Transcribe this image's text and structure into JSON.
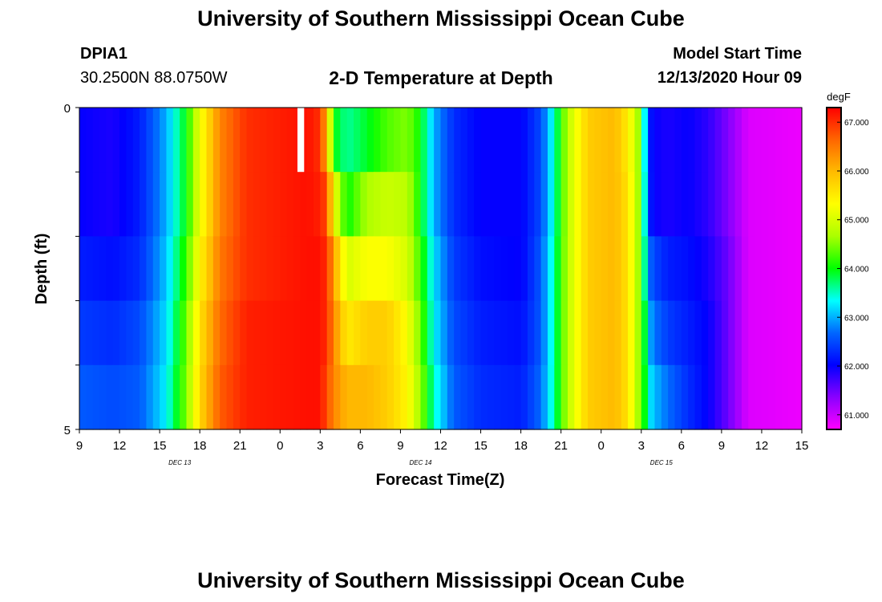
{
  "header": {
    "title": "University of Southern Mississippi Ocean Cube",
    "station_id": "DPIA1",
    "coordinates": "30.2500N 88.0750W",
    "subtitle": "2-D Temperature at Depth",
    "model_start_label": "Model Start Time",
    "model_start_value": "12/13/2020 Hour 09"
  },
  "footer": {
    "title": "University of Southern Mississippi Ocean Cube"
  },
  "chart_data": {
    "type": "heatmap",
    "title": "2-D Temperature at Depth",
    "xlabel": "Forecast Time(Z)",
    "ylabel": "Depth (ft)",
    "x_tick_labels": [
      "9",
      "12",
      "15",
      "18",
      "21",
      "0",
      "3",
      "6",
      "9",
      "12",
      "15",
      "18",
      "21",
      "0",
      "3",
      "6",
      "9",
      "12",
      "15"
    ],
    "day_labels": [
      {
        "label": "DEC 13",
        "tick_index": 2.5
      },
      {
        "label": "DEC 14",
        "tick_index": 8.5
      },
      {
        "label": "DEC 15",
        "tick_index": 14.5
      }
    ],
    "x_range_hours": [
      0,
      54
    ],
    "y_tick_labels": [
      "0",
      "5"
    ],
    "y_range": [
      0,
      5
    ],
    "depth_rows": [
      0,
      1,
      2,
      3,
      4
    ],
    "colorbar": {
      "unit": "degF",
      "min": 60.7,
      "max": 67.3,
      "tick_labels": [
        "67.000",
        "66.000",
        "65.000",
        "64.000",
        "63.000",
        "62.000",
        "61.000"
      ],
      "tick_values": [
        67,
        66,
        65,
        64,
        63,
        62,
        61
      ],
      "colors": [
        "#ff00ff",
        "#8a00ff",
        "#0000ff",
        "#0066ff",
        "#00ffff",
        "#00ff00",
        "#aaff00",
        "#ffff00",
        "#ffbb00",
        "#ff6600",
        "#ff0000"
      ]
    },
    "temperature_profile": [
      {
        "hour": 0,
        "values": [
          62.0,
          62.0,
          62.2,
          62.4,
          62.6
        ]
      },
      {
        "hour": 2.5,
        "values": [
          61.9,
          61.9,
          62.1,
          62.3,
          62.5
        ]
      },
      {
        "hour": 4.5,
        "values": [
          62.2,
          62.2,
          62.3,
          62.5,
          62.6
        ]
      },
      {
        "hour": 6.5,
        "values": [
          63.0,
          63.0,
          63.1,
          63.2,
          63.3
        ]
      },
      {
        "hour": 8,
        "values": [
          64.0,
          64.0,
          64.2,
          64.4,
          64.5
        ]
      },
      {
        "hour": 9,
        "values": [
          65.2,
          65.2,
          65.4,
          65.6,
          65.7
        ]
      },
      {
        "hour": 10.5,
        "values": [
          66.4,
          66.4,
          66.5,
          66.6,
          66.7
        ]
      },
      {
        "hour": 12.5,
        "values": [
          67.0,
          67.0,
          67.0,
          67.1,
          67.1
        ]
      },
      {
        "hour": 17,
        "values": [
          67.2,
          67.2,
          67.2,
          67.2,
          67.2
        ]
      },
      {
        "hour": 18,
        "values": [
          67.0,
          67.1,
          67.2,
          67.2,
          67.2
        ]
      },
      {
        "hour": 18.5,
        "values": [
          66.0,
          66.8,
          67.0,
          67.0,
          66.8
        ]
      },
      {
        "hour": 19,
        "values": [
          64.0,
          65.3,
          66.2,
          66.4,
          66.4
        ]
      },
      {
        "hour": 20,
        "values": [
          63.6,
          64.0,
          65.0,
          65.5,
          66.0
        ]
      },
      {
        "hour": 21.5,
        "values": [
          63.9,
          64.7,
          65.3,
          65.8,
          66.0
        ]
      },
      {
        "hour": 23,
        "values": [
          64.3,
          64.9,
          65.3,
          65.8,
          65.8
        ]
      },
      {
        "hour": 24.5,
        "values": [
          64.5,
          64.8,
          65.0,
          65.3,
          65.4
        ]
      },
      {
        "hour": 25.5,
        "values": [
          64.0,
          64.0,
          64.2,
          64.4,
          64.6
        ]
      },
      {
        "hour": 26.5,
        "values": [
          63.0,
          63.0,
          63.2,
          63.3,
          63.5
        ]
      },
      {
        "hour": 28,
        "values": [
          62.3,
          62.3,
          62.4,
          62.5,
          62.6
        ]
      },
      {
        "hour": 30,
        "values": [
          62.0,
          62.0,
          62.1,
          62.2,
          62.3
        ]
      },
      {
        "hour": 33,
        "values": [
          62.0,
          62.0,
          62.0,
          62.1,
          62.2
        ]
      },
      {
        "hour": 34.5,
        "values": [
          62.5,
          62.5,
          62.6,
          62.6,
          62.7
        ]
      },
      {
        "hour": 35.5,
        "values": [
          63.5,
          63.5,
          63.6,
          63.6,
          63.6
        ]
      },
      {
        "hour": 36.5,
        "values": [
          64.8,
          64.8,
          64.8,
          64.8,
          64.8
        ]
      },
      {
        "hour": 38,
        "values": [
          65.8,
          65.8,
          65.8,
          65.8,
          65.8
        ]
      },
      {
        "hour": 40,
        "values": [
          66.0,
          66.0,
          66.0,
          66.0,
          66.0
        ]
      },
      {
        "hour": 41,
        "values": [
          65.5,
          65.6,
          65.6,
          65.6,
          65.6
        ]
      },
      {
        "hour": 41.8,
        "values": [
          64.6,
          64.6,
          64.6,
          64.6,
          64.6
        ]
      },
      {
        "hour": 42.3,
        "values": [
          63.2,
          63.3,
          63.5,
          63.8,
          63.9
        ]
      },
      {
        "hour": 42.8,
        "values": [
          62.0,
          62.0,
          62.5,
          62.8,
          63.1
        ]
      },
      {
        "hour": 44,
        "values": [
          61.9,
          61.9,
          62.2,
          62.4,
          62.7
        ]
      },
      {
        "hour": 45.5,
        "values": [
          62.0,
          62.0,
          62.1,
          62.2,
          62.3
        ]
      },
      {
        "hour": 47,
        "values": [
          61.8,
          61.8,
          61.9,
          62.0,
          62.0
        ]
      },
      {
        "hour": 48.5,
        "values": [
          61.4,
          61.4,
          61.5,
          61.5,
          61.5
        ]
      },
      {
        "hour": 50,
        "values": [
          60.9,
          60.9,
          60.9,
          60.9,
          60.9
        ]
      },
      {
        "hour": 54,
        "values": [
          60.8,
          60.8,
          60.8,
          60.8,
          60.8
        ]
      }
    ],
    "missing_data": [
      {
        "hour_start": 16.3,
        "hour_end": 16.8,
        "rows": [
          0
        ]
      }
    ]
  }
}
